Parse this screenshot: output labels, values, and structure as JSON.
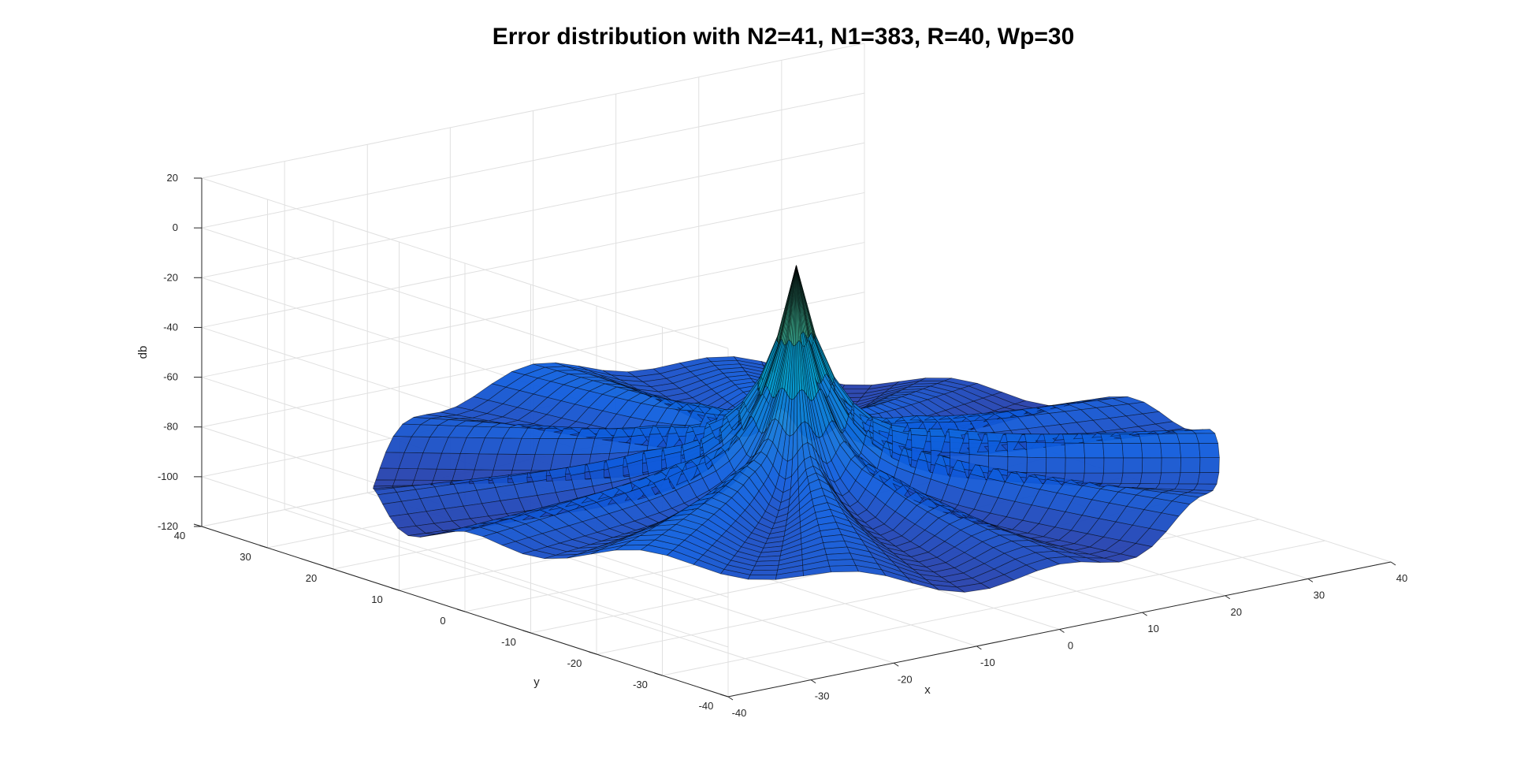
{
  "chart_data": {
    "type": "surface",
    "title": "Error distribution with N2=41, N1=383, R=40, Wp=30",
    "xlabel": "x",
    "ylabel": "y",
    "zlabel": "db",
    "xlim": [
      -40,
      40
    ],
    "ylim": [
      -40,
      40
    ],
    "zlim": [
      -120,
      20
    ],
    "x_ticks": [
      -40,
      -30,
      -20,
      -10,
      0,
      10,
      20,
      30,
      40
    ],
    "y_ticks": [
      -40,
      -30,
      -20,
      -10,
      0,
      10,
      20,
      30,
      40
    ],
    "z_ticks": [
      -120,
      -100,
      -80,
      -60,
      -40,
      -20,
      0,
      20
    ],
    "grid": "on",
    "colormap": "parula",
    "surface": {
      "description_values": {
        "peak_z_at_center": -8,
        "center_xy": [
          0,
          0
        ],
        "typical_z_at_rim": -95,
        "typical_z_mid_radius": -75,
        "domain_radius": 40
      },
      "petals": 12
    },
    "colors": {
      "grid": "#e0e0e0",
      "axis": "#262626",
      "edge": "#000000"
    }
  }
}
